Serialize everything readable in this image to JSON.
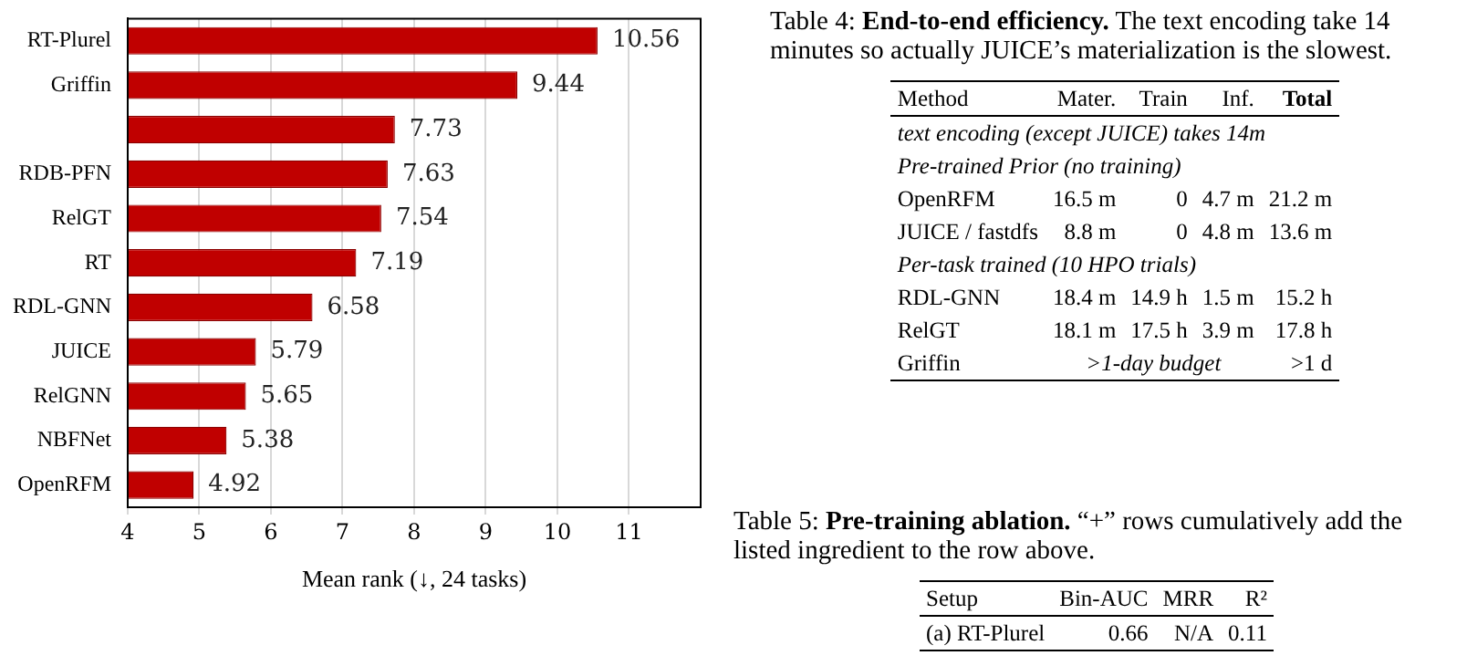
{
  "chart_data": [
    {
      "type": "bar",
      "orientation": "horizontal",
      "xlabel": "Mean rank (↓, 24 tasks)",
      "categories": [
        "RT-Plurel",
        "Griffin",
        null,
        "RDB-PFN",
        "RelGT",
        "RT",
        "RDL-GNN",
        "JUICE",
        "RelGNN",
        "NBFNet",
        "OpenRFM"
      ],
      "values": [
        10.56,
        9.44,
        7.73,
        7.63,
        7.54,
        7.19,
        6.58,
        5.79,
        5.65,
        5.38,
        4.92
      ],
      "color": "#c00000",
      "xlim": [
        4,
        12
      ],
      "xticks": [
        4,
        5,
        6,
        7,
        8,
        9,
        10,
        11
      ],
      "grid": "x",
      "data_labels": true
    },
    {
      "type": "other",
      "title": "Table 4: End-to-end efficiency. The text encoding take 14 minutes so actually JUICE’s materialization is the slowest.",
      "annotations": [
        "Method",
        "Mater.",
        "Train",
        "Inf.",
        "Total",
        "text encoding (except JUICE) takes 14m",
        "Pre-trained Prior (no training)",
        "OpenRFM",
        "16.5 m",
        "0",
        "4.7 m",
        "21.2 m",
        "JUICE / fastdfs",
        "8.8 m",
        "0",
        "4.8 m",
        "13.6 m",
        "Per-task trained (10 HPO trials)",
        "RDL-GNN",
        "18.4 m",
        "14.9 h",
        "1.5 m",
        "15.2 h",
        "RelGT",
        "18.1 m",
        "17.5 h",
        "3.9 m",
        "17.8 h",
        "Griffin",
        ">1-day budget",
        ">1 d"
      ]
    },
    {
      "type": "other",
      "title": "Table 5: Pre-training ablation. “+” rows cumulatively add the listed ingredient to the row above.",
      "annotations": [
        "Setup",
        "Bin-AUC",
        "MRR",
        "R²",
        "(a) RT-Plurel",
        "0.66",
        "N/A",
        "0.11"
      ]
    }
  ]
}
